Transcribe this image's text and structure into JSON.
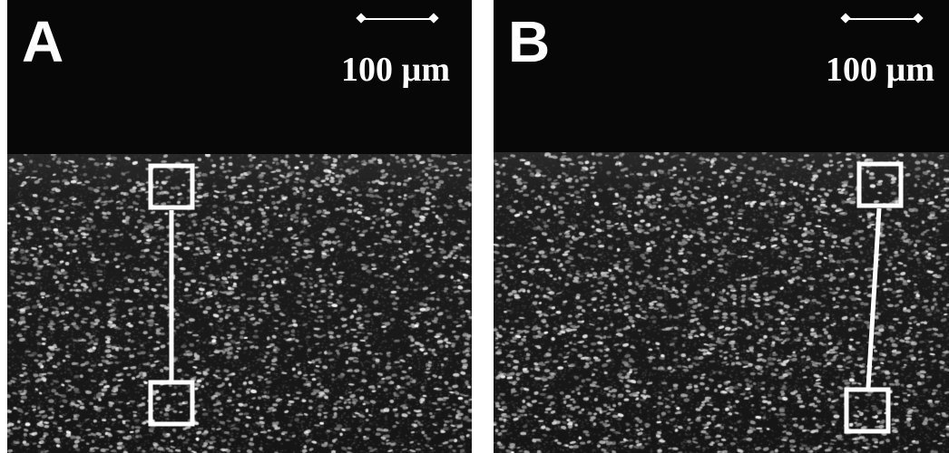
{
  "panels": [
    {
      "id": "a",
      "letter": "A",
      "scale_label": "100 µm"
    },
    {
      "id": "b",
      "letter": "B",
      "scale_label": "100 µm"
    }
  ],
  "colors": {
    "background": "#070707",
    "foreground": "#ffffff"
  }
}
